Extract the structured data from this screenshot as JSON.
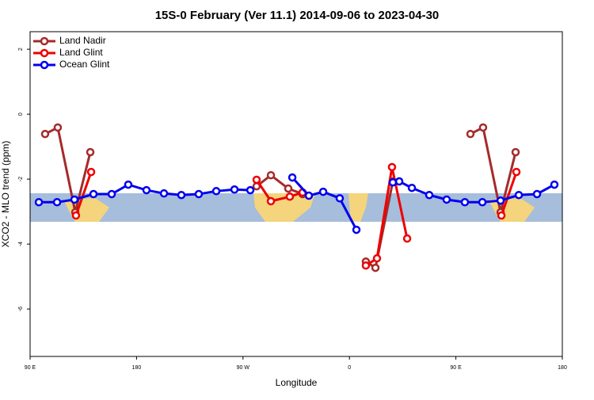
{
  "chart_data": {
    "type": "line",
    "title": "15S-0 February (Ver 11.1)   2014-09-06 to 2023-04-30",
    "x_label": "Longitude",
    "y_label": "XCO2 - MLO trend (ppm)",
    "xlim": [
      90,
      540
    ],
    "ylim": [
      -7.46,
      2.54
    ],
    "xticks": [
      {
        "value": 90,
        "label": "90 E"
      },
      180,
      {
        "value": 270,
        "label": "90 W"
      },
      {
        "value": 360,
        "label": "0"
      },
      {
        "value": 450,
        "label": "90 E"
      },
      {
        "value": 540,
        "label": "180"
      }
    ],
    "yticks": [
      2,
      0,
      -2,
      -4,
      -6
    ],
    "legend": "top-left",
    "series": [
      {
        "name": "Land Nadir",
        "color": "#a52a2a",
        "x": [
          102.7,
          113.4,
          128.2,
          140.9,
          null,
          281.5,
          293.6,
          308.3,
          320.4,
          null,
          373.9,
          382.0,
          396.7,
          null,
          462.3,
          473.0,
          487.8,
          500.5
        ],
        "values": [
          -0.61,
          -0.41,
          -3.02,
          -1.17,
          null,
          -2.22,
          -1.88,
          -2.29,
          -2.46,
          null,
          -4.54,
          -4.73,
          -2.07,
          null,
          -0.61,
          -0.41,
          -3.02,
          -1.17
        ]
      },
      {
        "name": "Land Glint",
        "color": "#ee0000",
        "x": [
          128.8,
          141.6,
          null,
          281.5,
          293.6,
          309.6,
          320.4,
          null,
          373.9,
          383.3,
          396.0,
          408.8,
          null,
          488.5,
          501.2
        ],
        "values": [
          -3.12,
          -1.78,
          null,
          -2.02,
          -2.68,
          -2.54,
          -2.41,
          null,
          -4.66,
          -4.44,
          -1.63,
          -3.83,
          null,
          -3.12,
          -1.78
        ]
      },
      {
        "name": "Ocean Glint",
        "color": "#0000ee",
        "x": [
          97.4,
          112.8,
          127.5,
          143.6,
          159.0,
          173.0,
          188.4,
          203.2,
          217.9,
          232.6,
          247.4,
          262.8,
          276.2,
          null,
          311.7,
          325.7,
          337.8,
          351.8,
          365.9,
          null,
          396.7,
          402.1,
          412.8,
          427.5,
          442.2,
          457.6,
          472.4,
          487.8,
          503.2,
          518.6,
          533.3
        ],
        "values": [
          -2.71,
          -2.71,
          -2.63,
          -2.46,
          -2.46,
          -2.17,
          -2.34,
          -2.44,
          -2.49,
          -2.46,
          -2.37,
          -2.32,
          -2.34,
          null,
          -1.95,
          -2.51,
          -2.39,
          -2.59,
          -3.56,
          null,
          -2.1,
          -2.07,
          -2.27,
          -2.49,
          -2.63,
          -2.71,
          -2.71,
          -2.66,
          -2.49,
          -2.46,
          -2.17
        ]
      }
    ]
  }
}
